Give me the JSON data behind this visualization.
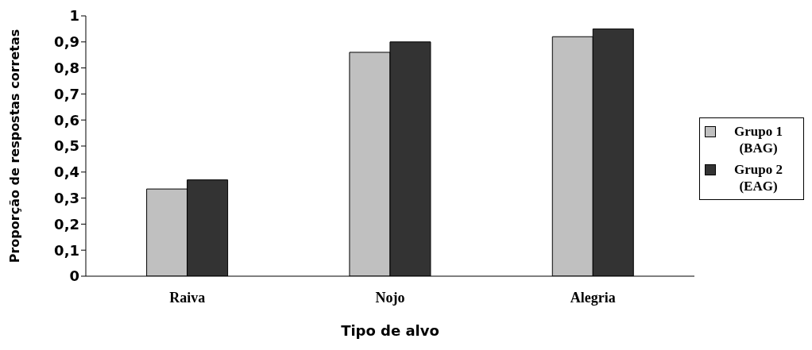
{
  "chart_data": {
    "type": "bar",
    "xlabel": "Tipo de alvo",
    "ylabel": "Proporção de respostas corretas",
    "categories": [
      "Raiva",
      "Nojo",
      "Alegria"
    ],
    "series": [
      {
        "name": "Grupo 1 (BAG)",
        "color": "#c0c0c0",
        "values": [
          0.335,
          0.86,
          0.92
        ]
      },
      {
        "name": "Grupo 2 (EAG)",
        "color": "#333333",
        "values": [
          0.37,
          0.9,
          0.95
        ]
      }
    ],
    "ylim": [
      0,
      1
    ],
    "yticks": [
      0,
      {
        "value": 0.1,
        "label": "0,1"
      },
      {
        "value": 0.2,
        "label": "0,2"
      },
      {
        "value": 0.3,
        "label": "0,3"
      },
      {
        "value": 0.4,
        "label": "0,4"
      },
      {
        "value": 0.5,
        "label": "0,5"
      },
      {
        "value": 0.6,
        "label": "0,6"
      },
      {
        "value": 0.7,
        "label": "0,7"
      },
      {
        "value": 0.8,
        "label": "0,8"
      },
      {
        "value": 0.9,
        "label": "0,9"
      },
      1
    ],
    "grid": false,
    "legend": "right"
  }
}
